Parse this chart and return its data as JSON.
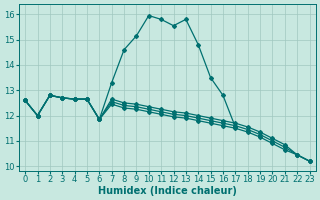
{
  "xlabel": "Humidex (Indice chaleur)",
  "xlim": [
    -0.5,
    23.5
  ],
  "ylim": [
    9.8,
    16.4
  ],
  "xticks": [
    0,
    1,
    2,
    3,
    4,
    5,
    6,
    7,
    8,
    9,
    10,
    11,
    12,
    13,
    14,
    15,
    16,
    17,
    18,
    19,
    20,
    21,
    22,
    23
  ],
  "yticks": [
    10,
    11,
    12,
    13,
    14,
    15,
    16
  ],
  "bg_color": "#c8e8e0",
  "grid_color": "#a0c8c0",
  "line_color": "#007070",
  "curve_x": [
    0,
    1,
    2,
    3,
    4,
    5,
    6,
    7,
    8,
    9,
    10,
    11,
    12,
    13,
    14,
    15,
    16,
    17,
    18,
    19,
    20,
    21,
    22,
    23
  ],
  "curve_y": [
    12.6,
    12.0,
    12.8,
    12.7,
    12.65,
    12.65,
    11.85,
    13.3,
    14.6,
    15.15,
    15.95,
    15.8,
    15.55,
    15.8,
    14.8,
    13.5,
    12.8,
    11.55,
    null,
    null,
    null,
    null,
    null,
    null
  ],
  "diag_lines": [
    {
      "x": [
        0,
        1,
        2,
        3,
        4,
        5,
        6,
        7,
        8,
        9,
        10,
        11,
        12,
        13,
        14,
        15,
        16,
        17,
        18,
        19,
        20,
        21,
        22,
        23
      ],
      "y": [
        12.6,
        12.0,
        12.8,
        12.7,
        12.65,
        12.65,
        11.85,
        12.65,
        12.5,
        12.45,
        12.35,
        12.25,
        12.15,
        12.1,
        12.0,
        11.9,
        11.8,
        11.7,
        11.55,
        11.35,
        11.1,
        10.85,
        10.45,
        10.2
      ]
    },
    {
      "x": [
        0,
        1,
        2,
        3,
        4,
        5,
        6,
        7,
        8,
        9,
        10,
        11,
        12,
        13,
        14,
        15,
        16,
        17,
        18,
        19,
        20,
        21,
        22,
        23
      ],
      "y": [
        12.6,
        12.0,
        12.8,
        12.7,
        12.65,
        12.65,
        11.85,
        12.55,
        12.4,
        12.35,
        12.25,
        12.15,
        12.05,
        12.0,
        11.9,
        11.8,
        11.7,
        11.6,
        11.45,
        11.25,
        11.0,
        10.75,
        10.45,
        10.2
      ]
    },
    {
      "x": [
        0,
        1,
        2,
        3,
        4,
        5,
        6,
        7,
        8,
        9,
        10,
        11,
        12,
        13,
        14,
        15,
        16,
        17,
        18,
        19,
        20,
        21,
        22,
        23
      ],
      "y": [
        12.6,
        12.0,
        12.8,
        12.7,
        12.65,
        12.65,
        11.85,
        12.45,
        12.3,
        12.25,
        12.15,
        12.05,
        11.95,
        11.9,
        11.8,
        11.7,
        11.6,
        11.5,
        11.35,
        11.15,
        10.9,
        10.65,
        10.45,
        10.2
      ]
    }
  ],
  "marker": "D",
  "marker_size": 2.0,
  "line_width": 0.9,
  "font_size": 6,
  "xlabel_fontsize": 7
}
